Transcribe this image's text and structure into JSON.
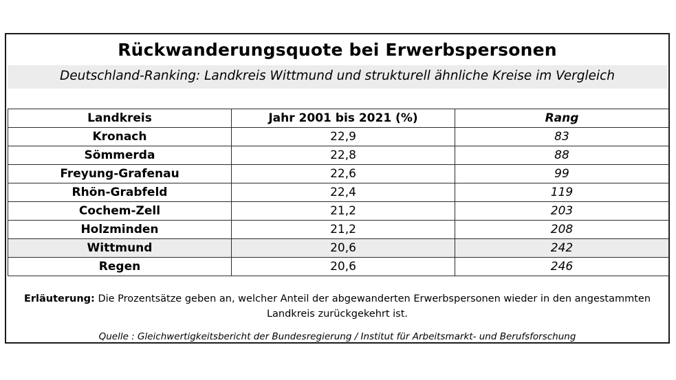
{
  "title": "Rückwanderungsquote bei Erwerbspersonen",
  "subtitle": "Deutschland-Ranking: Landkreis Wittmund und strukturell ähnliche Kreise im Vergleich",
  "table": {
    "headers": [
      "Landkreis",
      "Jahr 2001 bis 2021 (%)",
      "Rang"
    ],
    "rows": [
      {
        "name": "Kronach",
        "value": "22,9",
        "rank": "83"
      },
      {
        "name": "Sömmerda",
        "value": "22,8",
        "rank": "88"
      },
      {
        "name": "Freyung-Grafenau",
        "value": "22,6",
        "rank": "99"
      },
      {
        "name": "Rhön-Grabfeld",
        "value": "22,4",
        "rank": "119"
      },
      {
        "name": "Cochem-Zell",
        "value": "21,2",
        "rank": "203"
      },
      {
        "name": "Holzminden",
        "value": "21,2",
        "rank": "208"
      },
      {
        "name": "Wittmund",
        "value": "20,6",
        "rank": "242"
      },
      {
        "name": "Regen",
        "value": "20,6",
        "rank": "246"
      }
    ]
  },
  "explanation": {
    "label": "Erläuterung:",
    "text": "Die Prozentsätze geben an, welcher Anteil der abgewanderten Erwerbspersonen wieder in den angestammten Landkreis zurückgekehrt ist."
  },
  "source": "Quelle : Gleichwertigkeitsbericht der Bundesregierung / Institut für Arbeitsmarkt- und Berufsforschung",
  "colors": {
    "highlight_row": "#ececec",
    "border": "#1a1a1a"
  }
}
